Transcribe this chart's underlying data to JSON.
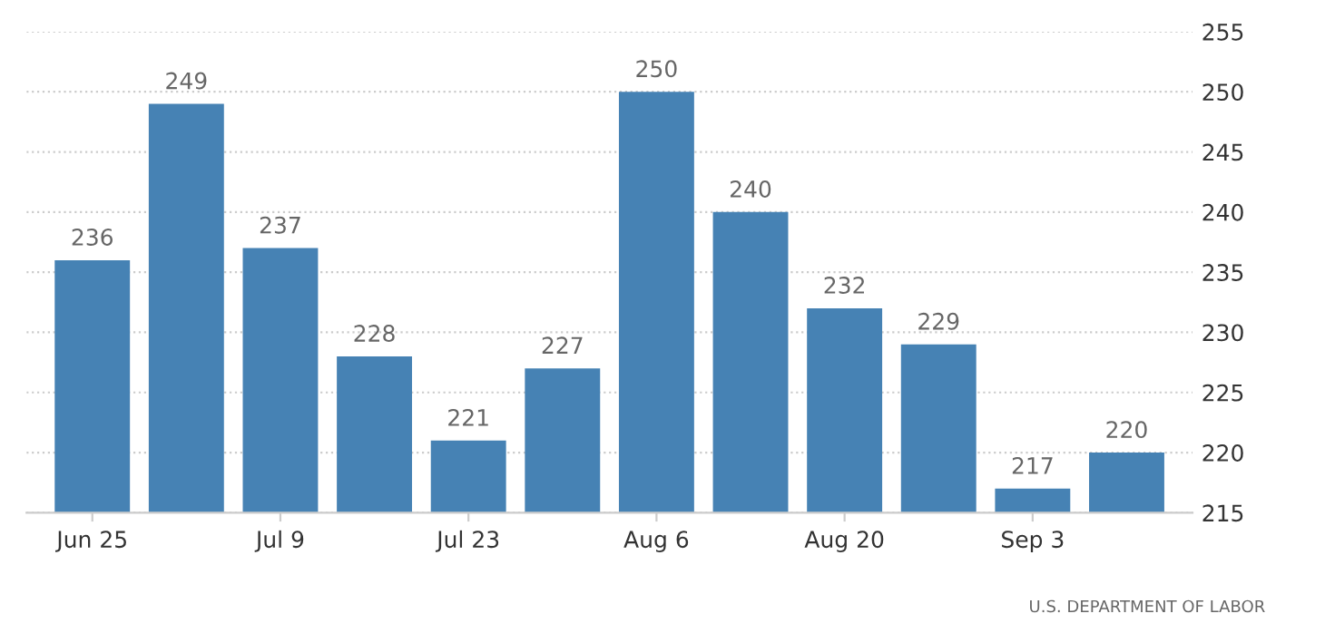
{
  "chart_data": {
    "type": "bar",
    "categories": [
      "Jun 25",
      null,
      "Jul 9",
      null,
      "Jul 23",
      null,
      "Aug 6",
      null,
      "Aug 20",
      null,
      "Sep 3",
      null
    ],
    "values": [
      236,
      249,
      237,
      228,
      221,
      227,
      250,
      240,
      232,
      229,
      217,
      220
    ],
    "color": "#4682b4",
    "ylim": [
      215,
      255
    ],
    "yticks": [
      215,
      220,
      225,
      230,
      235,
      240,
      245,
      250,
      255
    ],
    "grid": "y",
    "data_labels": true,
    "annotations": [
      "U.S. DEPARTMENT OF LABOR"
    ]
  }
}
